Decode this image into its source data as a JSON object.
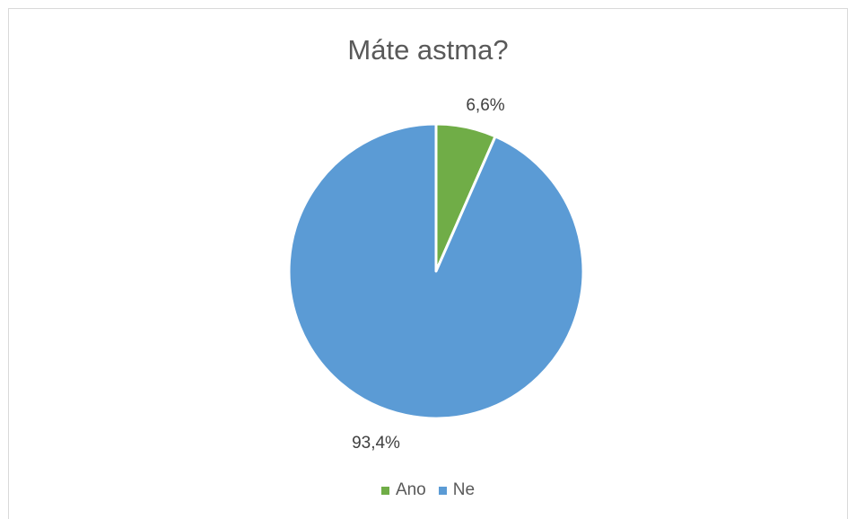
{
  "chart_data": {
    "type": "pie",
    "title": "Máte astma?",
    "slices": [
      {
        "label": "Ano",
        "value": 6.6,
        "display": "6,6%",
        "color": "#70ad47"
      },
      {
        "label": "Ne",
        "value": 93.4,
        "display": "93,4%",
        "color": "#5b9bd5"
      }
    ],
    "legend_position": "bottom",
    "start_angle_deg": 0,
    "direction": "clockwise"
  }
}
